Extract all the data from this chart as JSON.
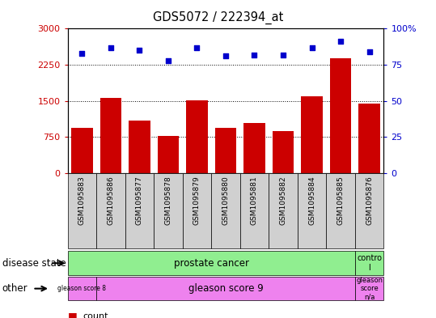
{
  "title": "GDS5072 / 222394_at",
  "samples": [
    "GSM1095883",
    "GSM1095886",
    "GSM1095877",
    "GSM1095878",
    "GSM1095879",
    "GSM1095880",
    "GSM1095881",
    "GSM1095882",
    "GSM1095884",
    "GSM1095885",
    "GSM1095876"
  ],
  "bar_values": [
    950,
    1560,
    1100,
    780,
    1510,
    950,
    1050,
    870,
    1600,
    2380,
    1450
  ],
  "scatter_values": [
    83,
    87,
    85,
    78,
    87,
    81,
    82,
    82,
    87,
    91,
    84
  ],
  "bar_color": "#cc0000",
  "scatter_color": "#0000cc",
  "left_ylim": [
    0,
    3000
  ],
  "right_ylim": [
    0,
    100
  ],
  "left_yticks": [
    0,
    750,
    1500,
    2250,
    3000
  ],
  "right_yticks": [
    0,
    25,
    50,
    75,
    100
  ],
  "right_yticklabels": [
    "0",
    "25",
    "50",
    "75",
    "100%"
  ],
  "hline_values": [
    750,
    1500,
    2250
  ],
  "disease_state_label": "disease state",
  "other_label": "other",
  "prostate_cancer_color": "#90ee90",
  "control_color": "#90ee90",
  "gleason_color": "#ee82ee",
  "bg_plot": "#ffffff",
  "tick_color_left": "#cc0000",
  "tick_color_right": "#0000cc",
  "col_bg": "#d0d0d0"
}
